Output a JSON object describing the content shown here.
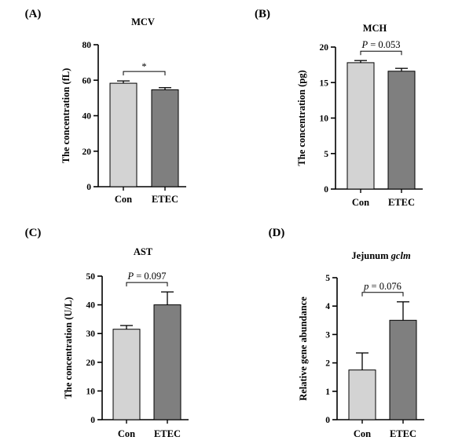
{
  "chart_data": [
    {
      "type": "bar",
      "panel_label": "(A)",
      "title": "MCV",
      "title_italic": "",
      "ylabel": "The concentration (fL)",
      "categories": [
        "Con",
        "ETEC"
      ],
      "values": [
        58.3,
        54.6
      ],
      "errors": [
        1.3,
        1.2
      ],
      "ylim": [
        0,
        80
      ],
      "yticks": [
        0,
        20,
        40,
        60,
        80
      ],
      "annotation": {
        "text": "*",
        "prefix": "",
        "italic": false
      },
      "bar_colors": [
        "#d3d3d3",
        "#7f7f7f"
      ]
    },
    {
      "type": "bar",
      "panel_label": "(B)",
      "title": "MCH",
      "title_italic": "",
      "ylabel": "The concentration (pg)",
      "categories": [
        "Con",
        "ETEC"
      ],
      "values": [
        17.8,
        16.6
      ],
      "errors": [
        0.3,
        0.4
      ],
      "ylim": [
        0,
        20
      ],
      "yticks": [
        0,
        5,
        10,
        15,
        20
      ],
      "annotation": {
        "prefix": "P",
        "text": " = 0.053",
        "italic": true
      },
      "bar_colors": [
        "#d3d3d3",
        "#7f7f7f"
      ]
    },
    {
      "type": "bar",
      "panel_label": "(C)",
      "title": "AST",
      "title_italic": "",
      "ylabel": "The concentration (U/L)",
      "categories": [
        "Con",
        "ETEC"
      ],
      "values": [
        31.5,
        40.0
      ],
      "errors": [
        1.3,
        4.5
      ],
      "ylim": [
        0,
        50
      ],
      "yticks": [
        0,
        10,
        20,
        30,
        40,
        50
      ],
      "annotation": {
        "prefix": "P",
        "text": " = 0.097",
        "italic": true
      },
      "bar_colors": [
        "#d3d3d3",
        "#7f7f7f"
      ]
    },
    {
      "type": "bar",
      "panel_label": "(D)",
      "title": "Jejunum ",
      "title_italic": "gclm",
      "ylabel": "Relative gene abundance",
      "categories": [
        "Con",
        "ETEC"
      ],
      "values": [
        1.75,
        3.5
      ],
      "errors": [
        0.6,
        0.65
      ],
      "ylim": [
        0,
        5
      ],
      "yticks": [
        0,
        1,
        2,
        3,
        4,
        5
      ],
      "annotation": {
        "prefix": "p",
        "text": " = 0.076",
        "italic": true
      },
      "bar_colors": [
        "#d3d3d3",
        "#7f7f7f"
      ]
    }
  ]
}
